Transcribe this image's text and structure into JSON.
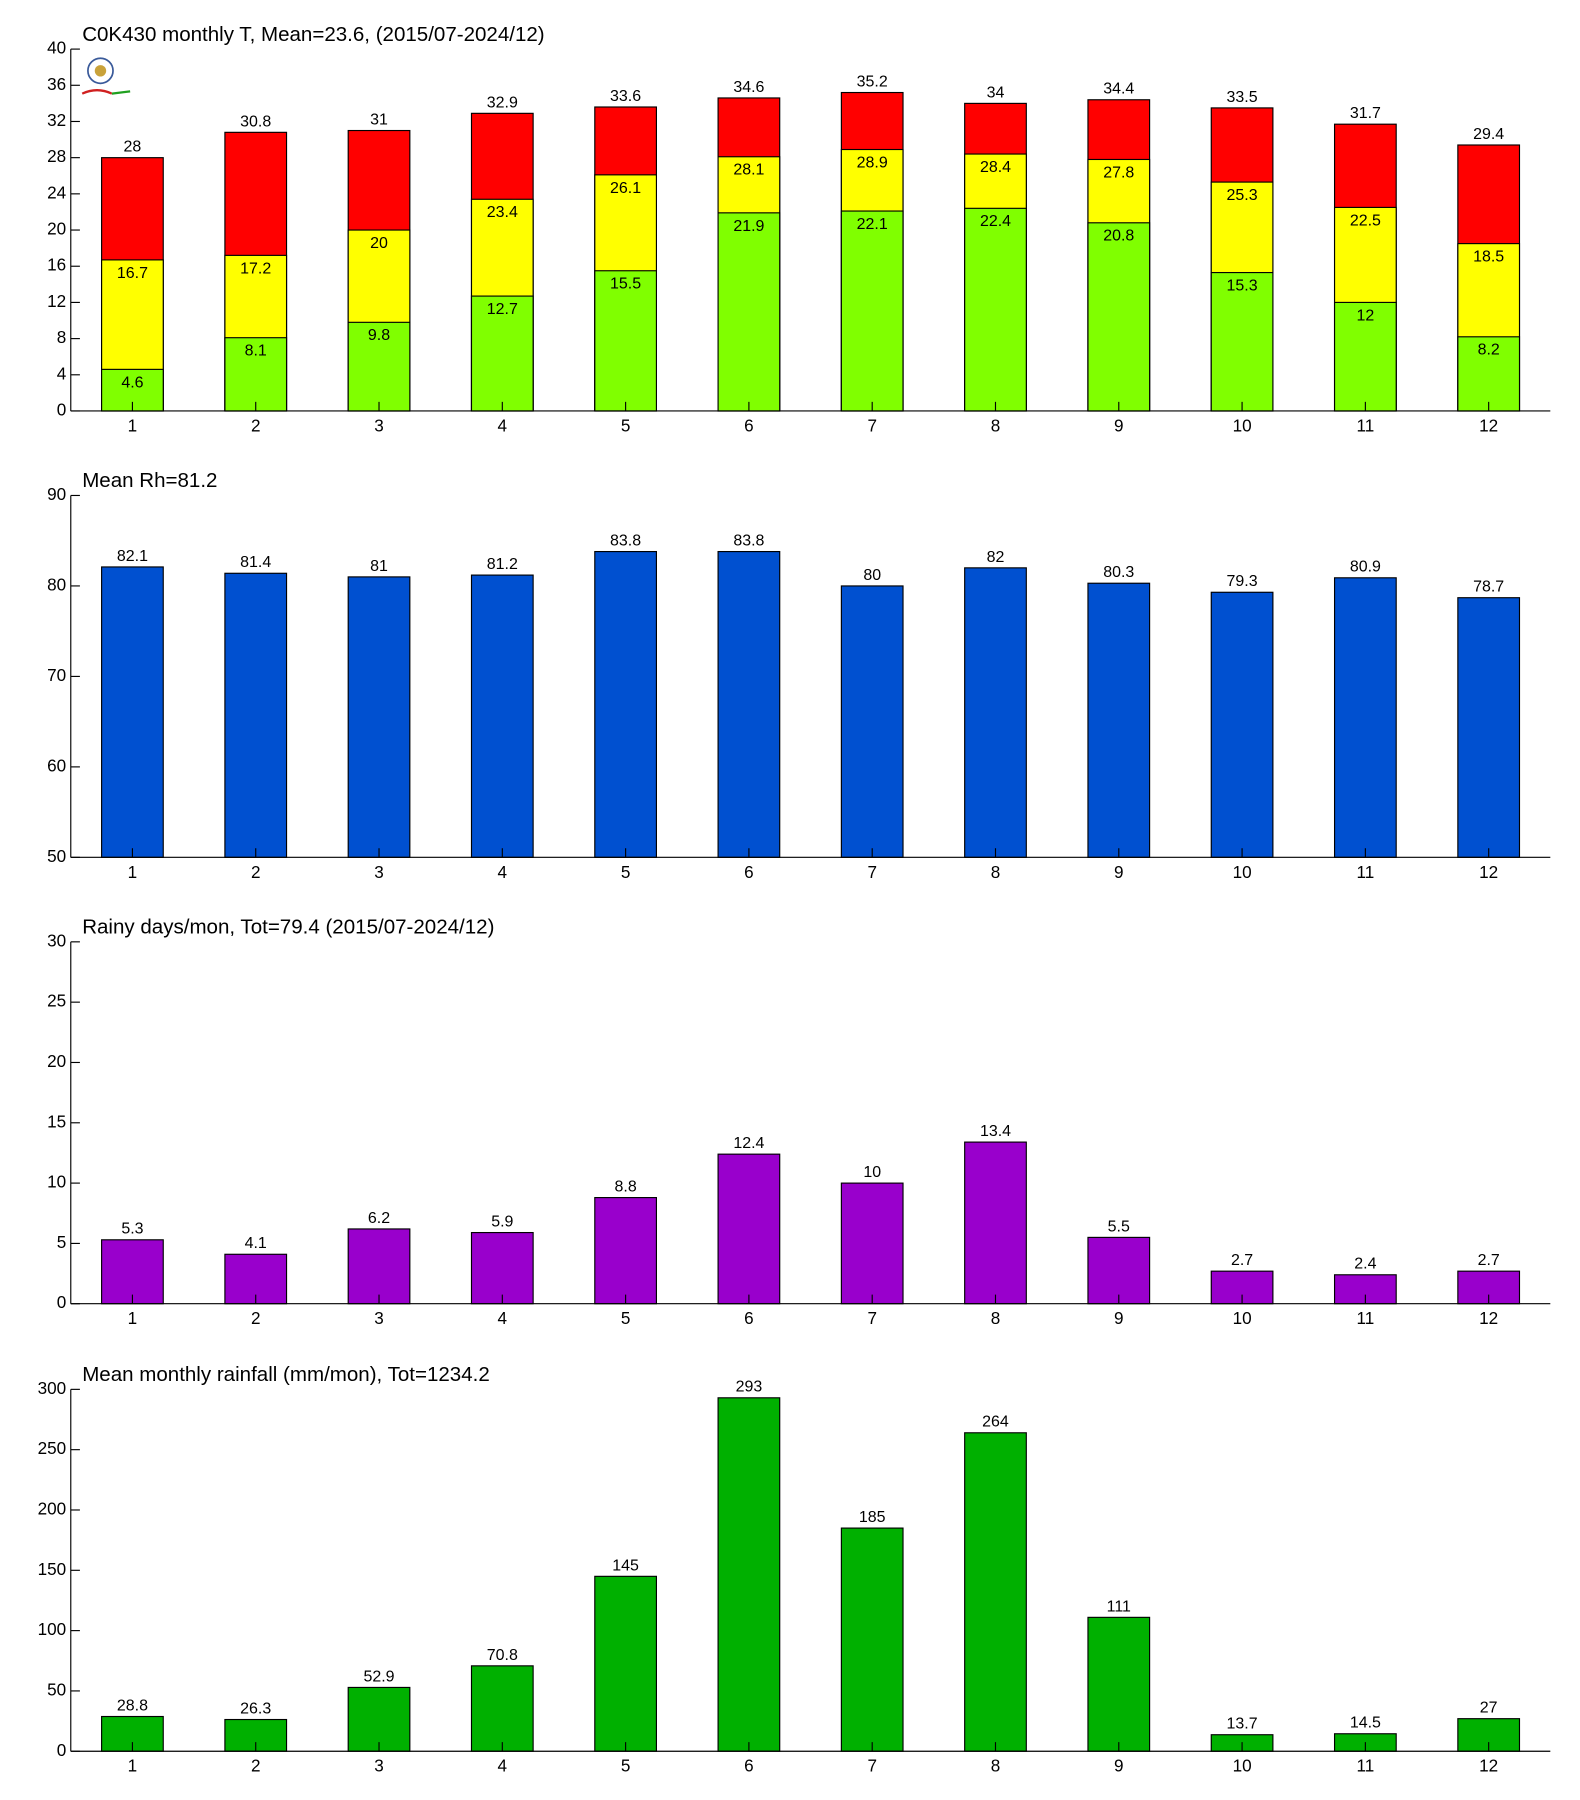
{
  "chart_data": [
    {
      "type": "bar",
      "title": "C0K430 monthly T, Mean=23.6, (2015/07-2024/12)",
      "categories": [
        "1",
        "2",
        "3",
        "4",
        "5",
        "6",
        "7",
        "8",
        "9",
        "10",
        "11",
        "12"
      ],
      "series": [
        {
          "color": "#ff0000",
          "values": [
            28,
            30.8,
            31,
            32.9,
            33.6,
            34.6,
            35.2,
            34,
            34.4,
            33.5,
            31.7,
            29.4
          ]
        },
        {
          "color": "#ffff00",
          "values": [
            16.7,
            17.2,
            20,
            23.4,
            26.1,
            28.1,
            28.9,
            28.4,
            27.8,
            25.3,
            22.5,
            18.5
          ]
        },
        {
          "color": "#80ff00",
          "values": [
            4.6,
            8.1,
            9.8,
            12.7,
            15.5,
            21.9,
            22.1,
            22.4,
            20.8,
            15.3,
            12,
            8.2
          ]
        }
      ],
      "ylim": [
        0,
        40
      ],
      "yticks": [
        0,
        4,
        8,
        12,
        16,
        20,
        24,
        28,
        32,
        36,
        40
      ]
    },
    {
      "type": "bar",
      "title": "Mean Rh=81.2",
      "categories": [
        "1",
        "2",
        "3",
        "4",
        "5",
        "6",
        "7",
        "8",
        "9",
        "10",
        "11",
        "12"
      ],
      "series": [
        {
          "color": "#0050d0",
          "values": [
            82.1,
            81.4,
            81,
            81.2,
            83.8,
            83.8,
            80,
            82,
            80.3,
            79.3,
            80.9,
            78.7
          ]
        }
      ],
      "ylim": [
        50,
        90
      ],
      "yticks": [
        50,
        60,
        70,
        80,
        90
      ]
    },
    {
      "type": "bar",
      "title": "Rainy days/mon, Tot=79.4 (2015/07-2024/12)",
      "categories": [
        "1",
        "2",
        "3",
        "4",
        "5",
        "6",
        "7",
        "8",
        "9",
        "10",
        "11",
        "12"
      ],
      "series": [
        {
          "color": "#9900cc",
          "values": [
            5.3,
            4.1,
            6.2,
            5.9,
            8.8,
            12.4,
            10,
            13.4,
            5.5,
            2.7,
            2.4,
            2.7
          ]
        }
      ],
      "ylim": [
        0,
        30
      ],
      "yticks": [
        0,
        5,
        10,
        15,
        20,
        25,
        30
      ]
    },
    {
      "type": "bar",
      "title": "Mean monthly rainfall (mm/mon), Tot=1234.2",
      "categories": [
        "1",
        "2",
        "3",
        "4",
        "5",
        "6",
        "7",
        "8",
        "9",
        "10",
        "11",
        "12"
      ],
      "series": [
        {
          "color": "#00b000",
          "values": [
            28.8,
            26.3,
            52.9,
            70.8,
            145,
            293,
            185,
            264,
            111,
            13.7,
            14.5,
            27
          ]
        }
      ],
      "ylim": [
        0,
        300
      ],
      "yticks": [
        0,
        50,
        100,
        150,
        200,
        250,
        300
      ]
    }
  ]
}
